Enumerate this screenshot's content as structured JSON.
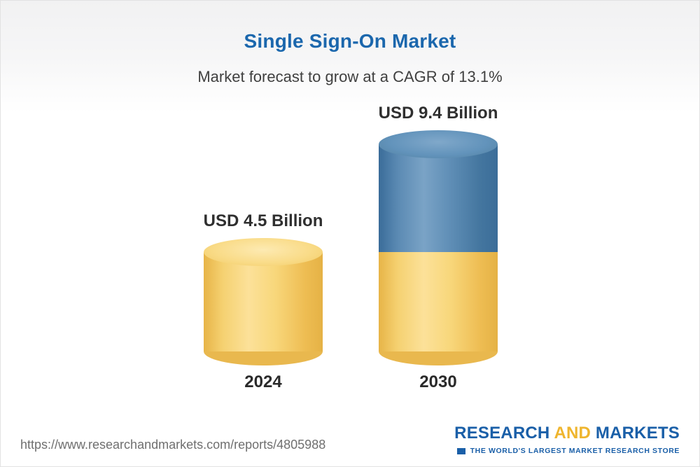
{
  "header": {
    "title": "Single Sign-On Market",
    "subtitle": "Market forecast to grow at a CAGR of 13.1%"
  },
  "chart_data": {
    "type": "bar",
    "categories": [
      "2024",
      "2030"
    ],
    "values": [
      4.5,
      9.4
    ],
    "value_labels": [
      "USD 4.5 Billion",
      "USD 9.4 Billion"
    ],
    "unit": "USD Billion",
    "cagr_percent": 13.1,
    "grid": false,
    "legend": false,
    "bar_style": "3d-cylinder",
    "colors": {
      "base_segment": "#F5CE63",
      "growth_segment": "#4A7CA8"
    },
    "notes": "2030 bar is stacked: yellow base equals 2024 value, blue top equals growth above 2024"
  },
  "footer": {
    "url": "https://www.researchandmarkets.com/reports/4805988",
    "logo": {
      "part1": "RESEARCH",
      "part2": "AND",
      "part3": "MARKETS",
      "tagline": "THE WORLD'S LARGEST MARKET RESEARCH STORE"
    }
  }
}
